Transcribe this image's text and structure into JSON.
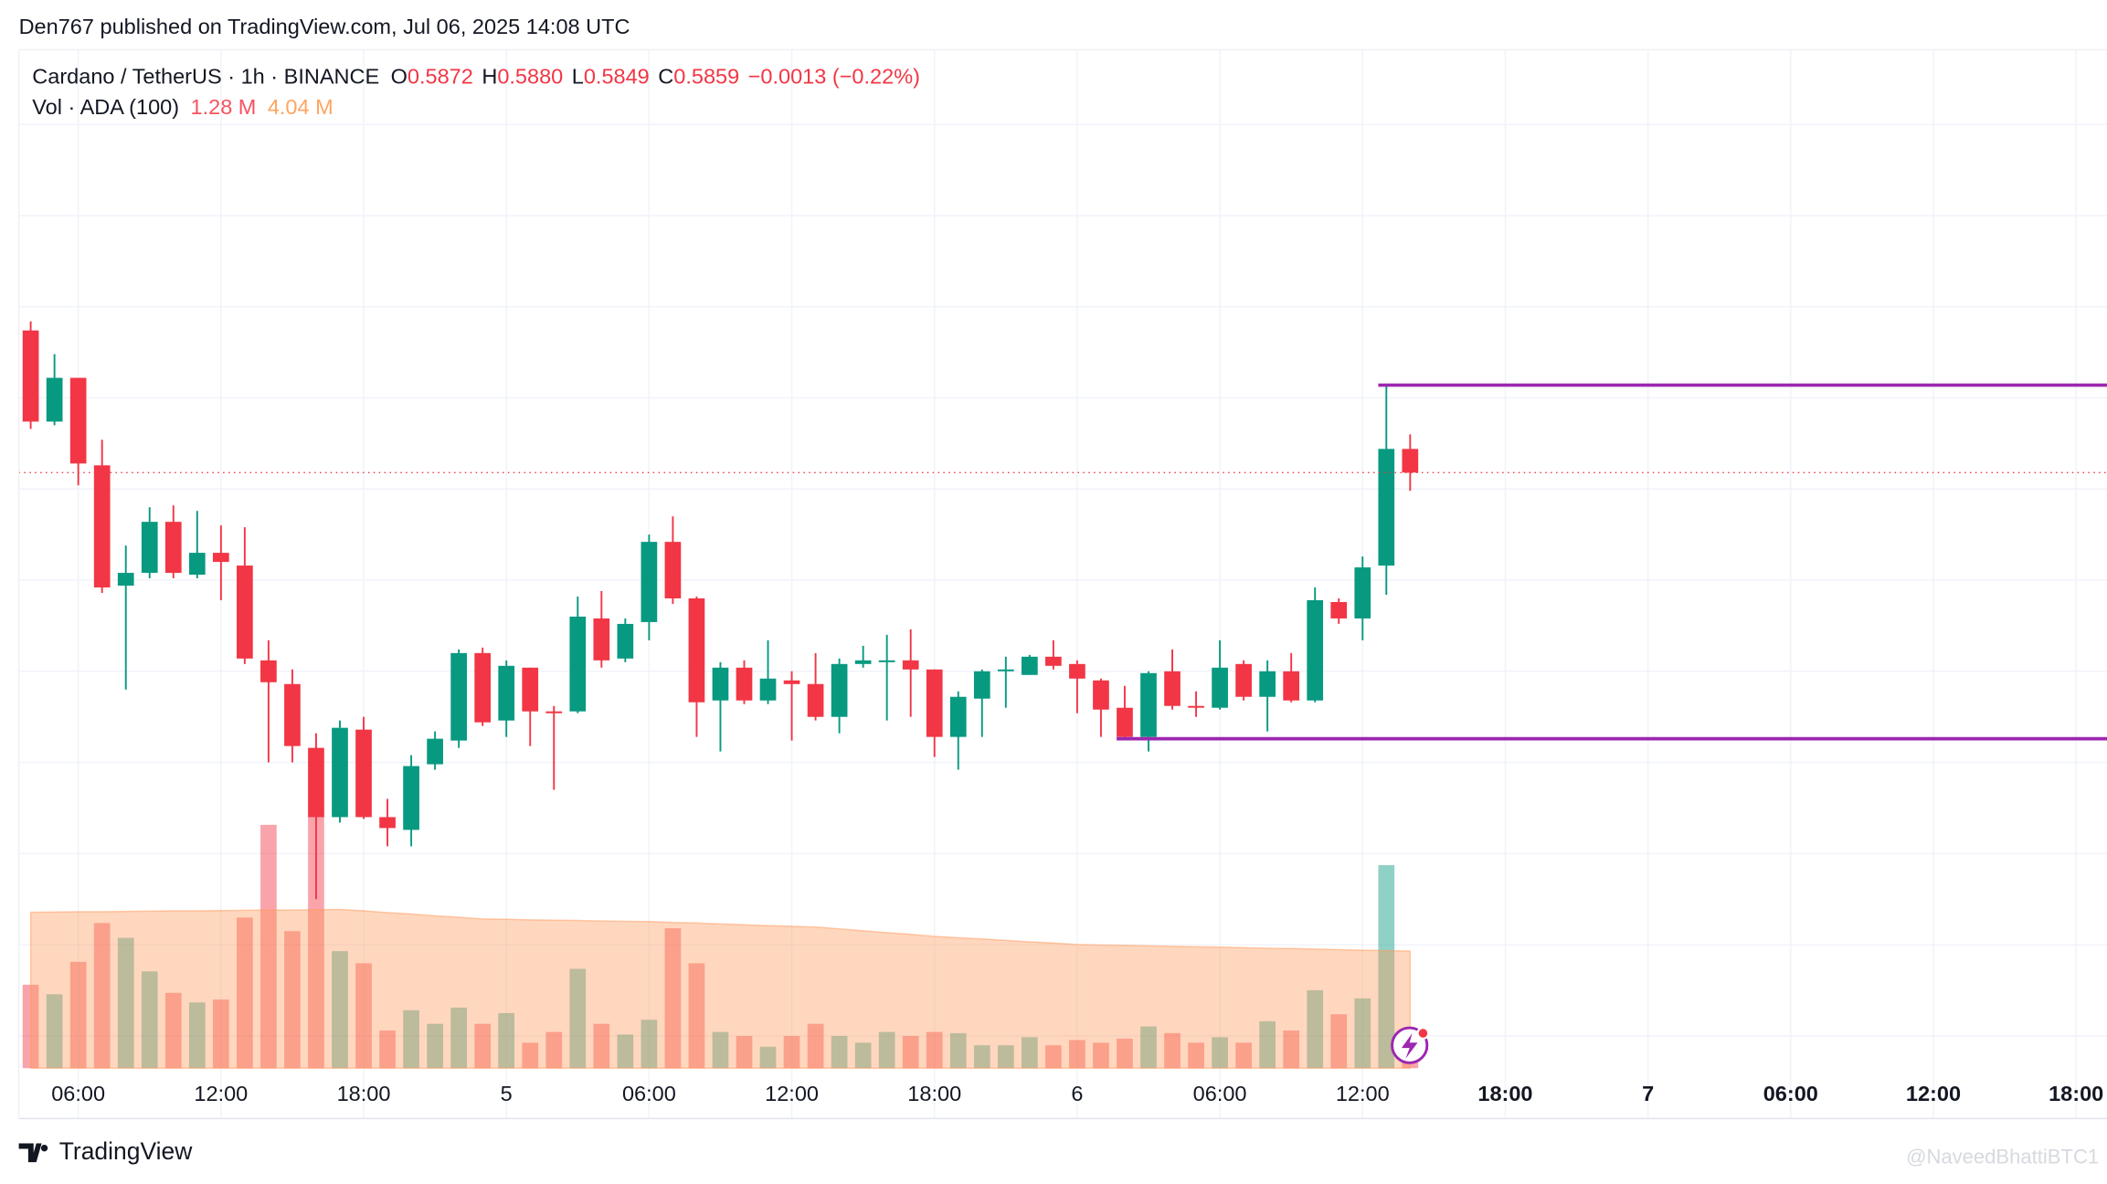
{
  "header": {
    "published": "Den767 published on TradingView.com, Jul 06, 2025 14:08 UTC"
  },
  "footer": {
    "brand": "TradingView",
    "watermark": "@NaveedBhattiBTC1"
  },
  "chart_data": {
    "type": "candlestick",
    "legend": {
      "symbol": "Cardano / TetherUS · 1h · BINANCE",
      "o": "O",
      "open": "0.5872",
      "h": "H",
      "high": "0.5880",
      "l": "L",
      "low": "0.5849",
      "c": "C",
      "close": "0.5859",
      "change": "−0.0013 (−0.22%)",
      "vol_title": "Vol · ADA (100)",
      "vol": "1.28 M",
      "vol_ma": "4.04 M"
    },
    "open": [
      0.5937,
      0.5887,
      0.5911,
      0.5863,
      0.5797,
      0.5804,
      0.5832,
      0.5803,
      0.5815,
      0.5808,
      0.5756,
      0.5743,
      0.5708,
      0.567,
      0.5718,
      0.567,
      0.5663,
      0.5699,
      0.5712,
      0.576,
      0.5723,
      0.5752,
      0.5728,
      0.5728,
      0.5779,
      0.5757,
      0.5777,
      0.5821,
      0.579,
      0.5734,
      0.5752,
      0.5734,
      0.5745,
      0.5743,
      0.5725,
      0.5754,
      0.5755,
      0.5756,
      0.5751,
      0.5714,
      0.5735,
      0.575,
      0.5748,
      0.5758,
      0.5754,
      0.5745,
      0.573,
      0.5714,
      0.575,
      0.5731,
      0.573,
      0.5754,
      0.5736,
      0.575,
      0.5734,
      0.5788,
      0.5779,
      0.5808,
      0.5872
    ],
    "high": [
      0.5942,
      0.5924,
      0.5911,
      0.5877,
      0.5819,
      0.584,
      0.5841,
      0.5838,
      0.583,
      0.5829,
      0.5767,
      0.5751,
      0.5716,
      0.5723,
      0.5725,
      0.568,
      0.5704,
      0.5717,
      0.5762,
      0.5763,
      0.5756,
      0.5752,
      0.5731,
      0.5791,
      0.5794,
      0.5779,
      0.5825,
      0.5835,
      0.5791,
      0.5755,
      0.5756,
      0.5767,
      0.575,
      0.576,
      0.5757,
      0.5764,
      0.577,
      0.5773,
      0.5751,
      0.5739,
      0.5751,
      0.5758,
      0.5759,
      0.5767,
      0.5756,
      0.5746,
      0.5742,
      0.575,
      0.5762,
      0.5739,
      0.5767,
      0.5756,
      0.5756,
      0.576,
      0.5796,
      0.579,
      0.5813,
      0.5907,
      0.588
    ],
    "low": [
      0.5883,
      0.5885,
      0.5852,
      0.5793,
      0.574,
      0.5801,
      0.5801,
      0.5801,
      0.5789,
      0.5754,
      0.57,
      0.57,
      0.5625,
      0.5667,
      0.5669,
      0.5654,
      0.5654,
      0.5696,
      0.5708,
      0.572,
      0.5714,
      0.5709,
      0.5685,
      0.5727,
      0.5752,
      0.5755,
      0.5767,
      0.5787,
      0.5714,
      0.5706,
      0.5732,
      0.5732,
      0.5712,
      0.5723,
      0.5716,
      0.5752,
      0.5723,
      0.5725,
      0.5703,
      0.5696,
      0.5714,
      0.573,
      0.5748,
      0.5751,
      0.5727,
      0.5714,
      0.5713,
      0.5706,
      0.5729,
      0.5725,
      0.5729,
      0.5734,
      0.5717,
      0.5733,
      0.5733,
      0.5776,
      0.5767,
      0.5792,
      0.5849
    ],
    "close": [
      0.5887,
      0.5911,
      0.5864,
      0.5796,
      0.5804,
      0.5832,
      0.5804,
      0.5815,
      0.581,
      0.5757,
      0.5744,
      0.5709,
      0.567,
      0.5719,
      0.567,
      0.5664,
      0.5698,
      0.5713,
      0.576,
      0.5722,
      0.5753,
      0.5728,
      0.5727,
      0.578,
      0.5756,
      0.5776,
      0.5821,
      0.579,
      0.5733,
      0.5752,
      0.5734,
      0.5746,
      0.5743,
      0.5725,
      0.5754,
      0.5756,
      0.5756,
      0.5751,
      0.5714,
      0.5736,
      0.575,
      0.5751,
      0.5758,
      0.5753,
      0.5746,
      0.5729,
      0.5714,
      0.5749,
      0.5731,
      0.573,
      0.5752,
      0.5736,
      0.575,
      0.5734,
      0.5789,
      0.5779,
      0.5807,
      0.5872,
      0.5859
    ],
    "volume": [
      2.88,
      2.55,
      3.67,
      5.01,
      4.5,
      3.34,
      2.6,
      2.27,
      2.37,
      5.2,
      8.4,
      4.73,
      8.72,
      4.04,
      3.62,
      1.3,
      2.0,
      1.53,
      2.09,
      1.53,
      1.9,
      0.88,
      1.25,
      3.43,
      1.53,
      1.16,
      1.67,
      4.83,
      3.62,
      1.25,
      1.11,
      0.74,
      1.11,
      1.53,
      1.11,
      0.88,
      1.25,
      1.11,
      1.25,
      1.21,
      0.79,
      0.79,
      1.07,
      0.79,
      0.97,
      0.88,
      1.02,
      1.44,
      1.21,
      0.88,
      1.07,
      0.88,
      1.62,
      1.3,
      2.69,
      1.86,
      2.41,
      7.01,
      1.28
    ],
    "volume_ma": [
      5.38,
      5.39,
      5.4,
      5.4,
      5.41,
      5.42,
      5.43,
      5.43,
      5.44,
      5.45,
      5.46,
      5.46,
      5.47,
      5.48,
      5.43,
      5.37,
      5.32,
      5.26,
      5.21,
      5.15,
      5.14,
      5.12,
      5.11,
      5.1,
      5.08,
      5.07,
      5.06,
      5.03,
      5.01,
      4.98,
      4.95,
      4.92,
      4.9,
      4.87,
      4.81,
      4.74,
      4.68,
      4.62,
      4.55,
      4.5,
      4.46,
      4.41,
      4.36,
      4.32,
      4.27,
      4.25,
      4.24,
      4.22,
      4.21,
      4.19,
      4.18,
      4.16,
      4.14,
      4.13,
      4.11,
      4.09,
      4.07,
      4.06,
      4.04
    ],
    "xlim": [
      -0.5,
      87.3
    ],
    "xticks": [
      {
        "value": 2,
        "label": "06:00"
      },
      {
        "value": 8,
        "label": "12:00"
      },
      {
        "value": 14,
        "label": "18:00"
      },
      {
        "value": 20,
        "label": "5"
      },
      {
        "value": 26,
        "label": "06:00"
      },
      {
        "value": 32,
        "label": "12:00"
      },
      {
        "value": 38,
        "label": "18:00"
      },
      {
        "value": 44,
        "label": "6"
      },
      {
        "value": 50,
        "label": "06:00"
      },
      {
        "value": 56,
        "label": "12:00"
      },
      {
        "value": 62,
        "label": "18:00"
      },
      {
        "value": 68,
        "label": "7"
      },
      {
        "value": 74,
        "label": "06:00"
      },
      {
        "value": 80,
        "label": "12:00"
      },
      {
        "value": 86,
        "label": "18:00"
      }
    ],
    "ylim": [
      0.5505,
      0.6091
    ],
    "ygrid": [
      0.555,
      0.56,
      0.565,
      0.57,
      0.575,
      0.58,
      0.585,
      0.59,
      0.595,
      0.6,
      0.605
    ],
    "hlines": [
      {
        "value": 0.5907
      },
      {
        "value": 0.5713
      }
    ],
    "up_color": "#089981",
    "down_color": "#f23645",
    "line_color": "#9c27b0",
    "ma_color": "#ff9a5c"
  }
}
